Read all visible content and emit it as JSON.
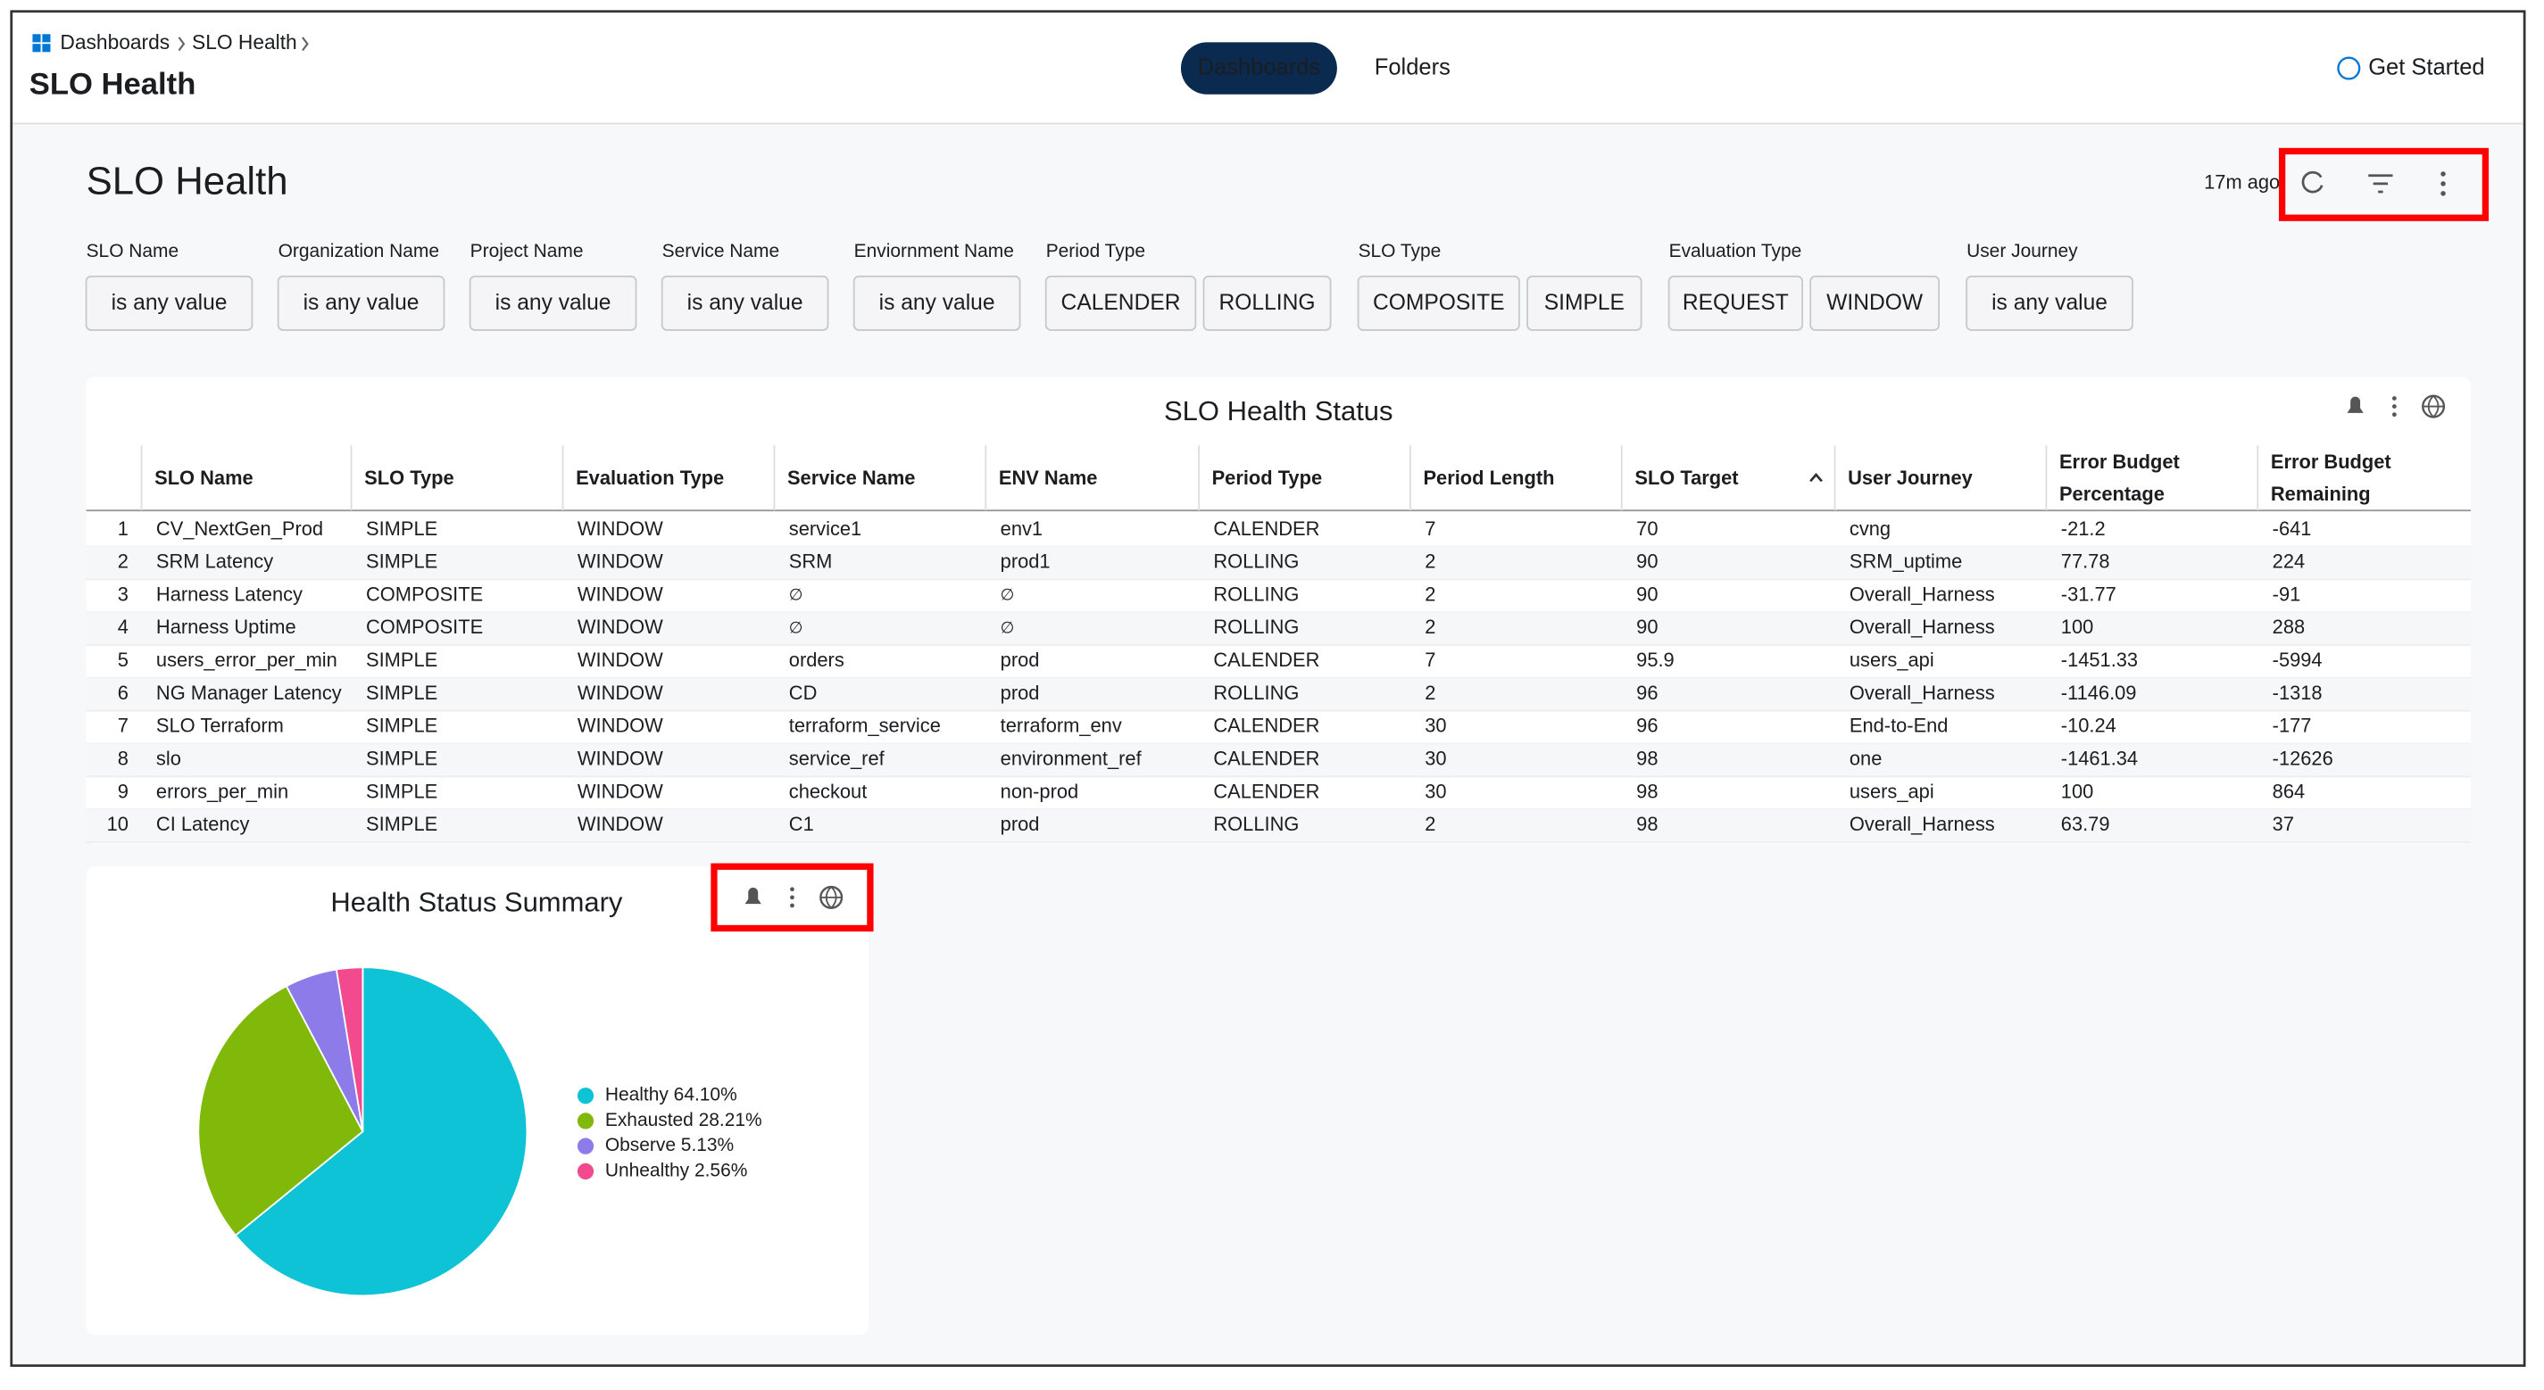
{
  "header": {
    "breadcrumbs": [
      "Dashboards",
      "SLO Health"
    ],
    "title": "SLO Health",
    "tabs": [
      "Dashboards",
      "Folders"
    ],
    "get_started": "Get Started"
  },
  "dashboard": {
    "title": "SLO Health",
    "updated": "17m ago",
    "filters": [
      {
        "label": "SLO Name",
        "options": [
          "is any value"
        ]
      },
      {
        "label": "Organization Name",
        "options": [
          "is any value"
        ]
      },
      {
        "label": "Project Name",
        "options": [
          "is any value"
        ]
      },
      {
        "label": "Service Name",
        "options": [
          "is any value"
        ]
      },
      {
        "label": "Enviornment Name",
        "options": [
          "is any value"
        ]
      },
      {
        "label": "Period Type",
        "options": [
          "CALENDER",
          "ROLLING"
        ]
      },
      {
        "label": "SLO Type",
        "options": [
          "COMPOSITE",
          "SIMPLE"
        ]
      },
      {
        "label": "Evaluation Type",
        "options": [
          "REQUEST",
          "WINDOW"
        ]
      },
      {
        "label": "User Journey",
        "options": [
          "is any value"
        ]
      }
    ]
  },
  "table": {
    "title": "SLO Health Status",
    "columns": [
      "SLO Name",
      "SLO Type",
      "Evaluation Type",
      "Service Name",
      "ENV Name",
      "Period Type",
      "Period Length",
      "SLO Target",
      "User Journey",
      "Error Budget Percentage",
      "Error Budget Remaining"
    ],
    "rows": [
      [
        1,
        "CV_NextGen_Prod",
        "SIMPLE",
        "WINDOW",
        "service1",
        "env1",
        "CALENDER",
        7,
        70,
        "cvng",
        -21.2,
        -641
      ],
      [
        2,
        "SRM Latency",
        "SIMPLE",
        "WINDOW",
        "SRM",
        "prod1",
        "ROLLING",
        2,
        90,
        "SRM_uptime",
        77.78,
        224
      ],
      [
        3,
        "Harness Latency",
        "COMPOSITE",
        "WINDOW",
        "∅",
        "∅",
        "ROLLING",
        2,
        90,
        "Overall_Harness",
        -31.77,
        -91
      ],
      [
        4,
        "Harness Uptime",
        "COMPOSITE",
        "WINDOW",
        "∅",
        "∅",
        "ROLLING",
        2,
        90,
        "Overall_Harness",
        100,
        288
      ],
      [
        5,
        "users_error_per_min",
        "SIMPLE",
        "WINDOW",
        "orders",
        "prod",
        "CALENDER",
        7,
        95.9,
        "users_api",
        -1451.33,
        -5994
      ],
      [
        6,
        "NG Manager Latency",
        "SIMPLE",
        "WINDOW",
        "CD",
        "prod",
        "ROLLING",
        2,
        96,
        "Overall_Harness",
        -1146.09,
        -1318
      ],
      [
        7,
        "SLO Terraform",
        "SIMPLE",
        "WINDOW",
        "terraform_service",
        "terraform_env",
        "CALENDER",
        30,
        96,
        "End-to-End",
        -10.24,
        -177
      ],
      [
        8,
        "slo",
        "SIMPLE",
        "WINDOW",
        "service_ref",
        "environment_ref",
        "CALENDER",
        30,
        98,
        "one",
        -1461.34,
        -12626
      ],
      [
        9,
        "errors_per_min",
        "SIMPLE",
        "WINDOW",
        "checkout",
        "non-prod",
        "CALENDER",
        30,
        98,
        "users_api",
        100,
        864
      ],
      [
        10,
        "CI Latency",
        "SIMPLE",
        "WINDOW",
        "C1",
        "prod",
        "ROLLING",
        2,
        98,
        "Overall_Harness",
        63.79,
        37
      ]
    ]
  },
  "chart_data": {
    "type": "pie",
    "title": "Health Status Summary",
    "labels": [
      "Healthy 64.10%",
      "Exhausted 28.21%",
      "Observe 5.13%",
      "Unhealthy 2.56%"
    ],
    "values": [
      64.1,
      28.21,
      5.13,
      2.56
    ],
    "colors": [
      "#0ec3d5",
      "#80b90a",
      "#8d7bea",
      "#f2498f"
    ]
  }
}
